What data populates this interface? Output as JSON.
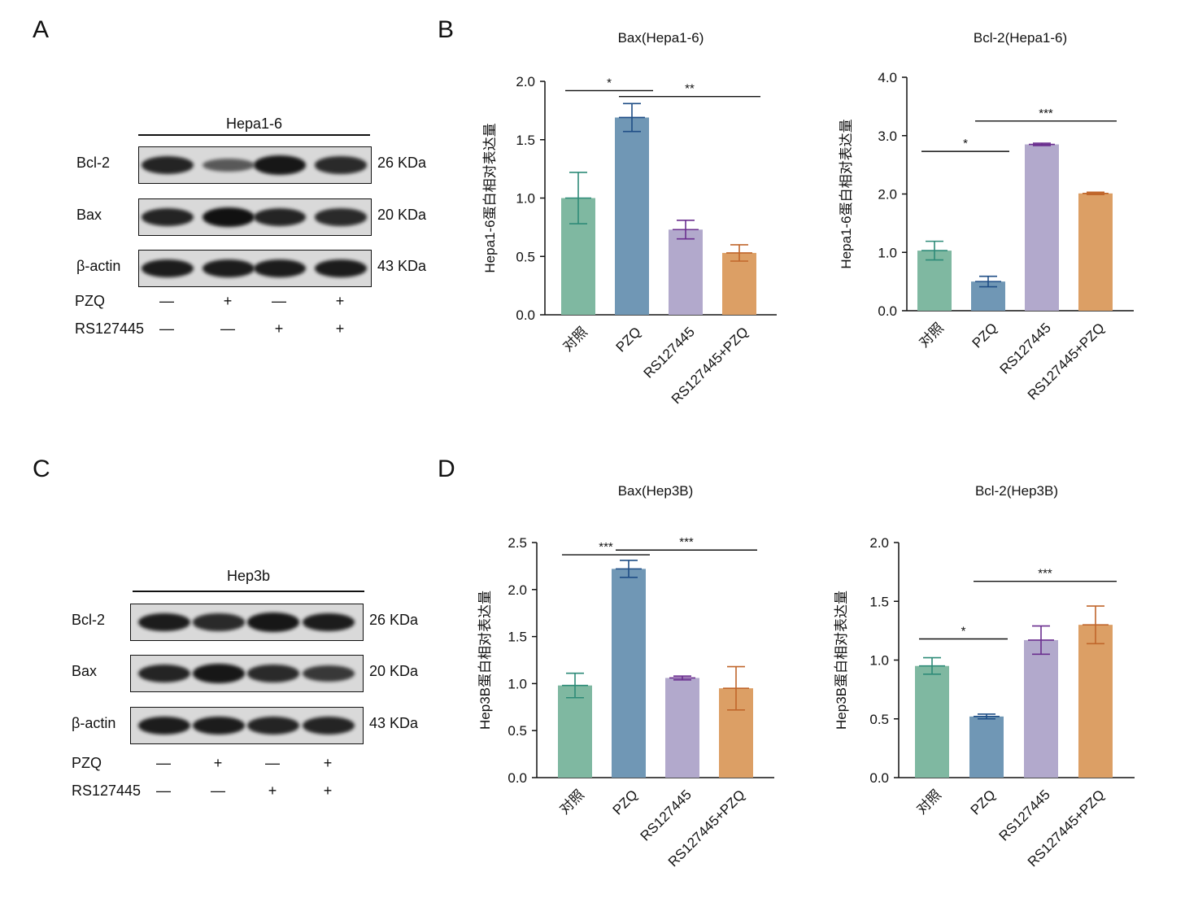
{
  "panels": {
    "A": "A",
    "B": "B",
    "C": "C",
    "D": "D"
  },
  "blots": [
    {
      "group": "Hepa1-6",
      "rows": [
        {
          "label": "Bcl-2",
          "size": "26 KDa",
          "intensity": [
            0.85,
            0.45,
            0.95,
            0.8
          ]
        },
        {
          "label": "Bax",
          "size": "20 KDa",
          "intensity": [
            0.85,
            1.0,
            0.85,
            0.8
          ]
        },
        {
          "label": "β-actin",
          "size": "43 KDa",
          "intensity": [
            0.9,
            0.9,
            0.9,
            0.9
          ]
        }
      ],
      "treatments": [
        {
          "label": "PZQ",
          "values": [
            "—",
            "+",
            "—",
            "+"
          ]
        },
        {
          "label": "RS127445",
          "values": [
            "—",
            "—",
            "+",
            "+"
          ]
        }
      ]
    },
    {
      "group": "Hep3b",
      "rows": [
        {
          "label": "Bcl-2",
          "size": "26 KDa",
          "intensity": [
            0.9,
            0.8,
            0.95,
            0.9
          ]
        },
        {
          "label": "Bax",
          "size": "20 KDa",
          "intensity": [
            0.85,
            0.95,
            0.8,
            0.7
          ]
        },
        {
          "label": "β-actin",
          "size": "43 KDa",
          "intensity": [
            0.9,
            0.9,
            0.85,
            0.85
          ]
        }
      ],
      "treatments": [
        {
          "label": "PZQ",
          "values": [
            "—",
            "+",
            "—",
            "+"
          ]
        },
        {
          "label": "RS127445",
          "values": [
            "—",
            "—",
            "+",
            "+"
          ]
        }
      ]
    }
  ],
  "colors": [
    "#7fb8a1",
    "#7097b5",
    "#b2a9cc",
    "#dc9f65"
  ],
  "error_colors": [
    "#2e8b78",
    "#1f4e86",
    "#6b2f8f",
    "#c0662b"
  ],
  "chart_data": [
    {
      "type": "bar",
      "title": "Bax(Hepa1-6)",
      "ylabel": "Hepa1-6蛋白相对表达量",
      "categories": [
        "对照",
        "PZQ",
        "RS127445",
        "RS127445+PZQ"
      ],
      "values": [
        1.0,
        1.69,
        0.73,
        0.53
      ],
      "errors": [
        0.22,
        0.12,
        0.08,
        0.07
      ],
      "ylim": [
        0,
        2.0
      ],
      "yticks": [
        "0.0",
        "0.5",
        "1.0",
        "1.5",
        "2.0"
      ],
      "significance": [
        {
          "from": 0,
          "to": 1,
          "label": "*",
          "y": 1.92
        },
        {
          "from": 1,
          "to": 3,
          "label": "**",
          "y": 1.87
        }
      ]
    },
    {
      "type": "bar",
      "title": "Bcl-2(Hepa1-6)",
      "ylabel": "Hepa1-6蛋白相对表达量",
      "categories": [
        "对照",
        "PZQ",
        "RS127445",
        "RS127445+PZQ"
      ],
      "values": [
        1.03,
        0.5,
        2.85,
        2.01
      ],
      "errors": [
        0.16,
        0.09,
        0.02,
        0.02
      ],
      "ylim": [
        0,
        4.0
      ],
      "yticks": [
        "0.0",
        "1.0",
        "2.0",
        "3.0",
        "4.0"
      ],
      "significance": [
        {
          "from": 0,
          "to": 1,
          "label": "*",
          "y": 2.73
        },
        {
          "from": 1,
          "to": 3,
          "label": "***",
          "y": 3.25
        }
      ]
    },
    {
      "type": "bar",
      "title": "Bax(Hep3B)",
      "ylabel": "Hep3B蛋白相对表达量",
      "categories": [
        "对照",
        "PZQ",
        "RS127445",
        "RS127445+PZQ"
      ],
      "values": [
        0.98,
        2.22,
        1.06,
        0.95
      ],
      "errors": [
        0.13,
        0.09,
        0.02,
        0.23
      ],
      "ylim": [
        0,
        2.5
      ],
      "yticks": [
        "0.0",
        "0.5",
        "1.0",
        "1.5",
        "2.0",
        "2.5"
      ],
      "significance": [
        {
          "from": 0,
          "to": 1,
          "label": "***",
          "y": 2.37
        },
        {
          "from": 1,
          "to": 3,
          "label": "***",
          "y": 2.42
        }
      ]
    },
    {
      "type": "bar",
      "title": "Bcl-2(Hep3B)",
      "ylabel": "Hep3B蛋白相对表达量",
      "categories": [
        "对照",
        "PZQ",
        "RS127445",
        "RS127445+PZQ"
      ],
      "values": [
        0.95,
        0.52,
        1.17,
        1.3
      ],
      "errors": [
        0.07,
        0.02,
        0.12,
        0.16
      ],
      "ylim": [
        0,
        2.0
      ],
      "yticks": [
        "0.0",
        "0.5",
        "1.0",
        "1.5",
        "2.0"
      ],
      "significance": [
        {
          "from": 0,
          "to": 1,
          "label": "*",
          "y": 1.18
        },
        {
          "from": 1,
          "to": 3,
          "label": "***",
          "y": 1.67
        }
      ]
    }
  ]
}
